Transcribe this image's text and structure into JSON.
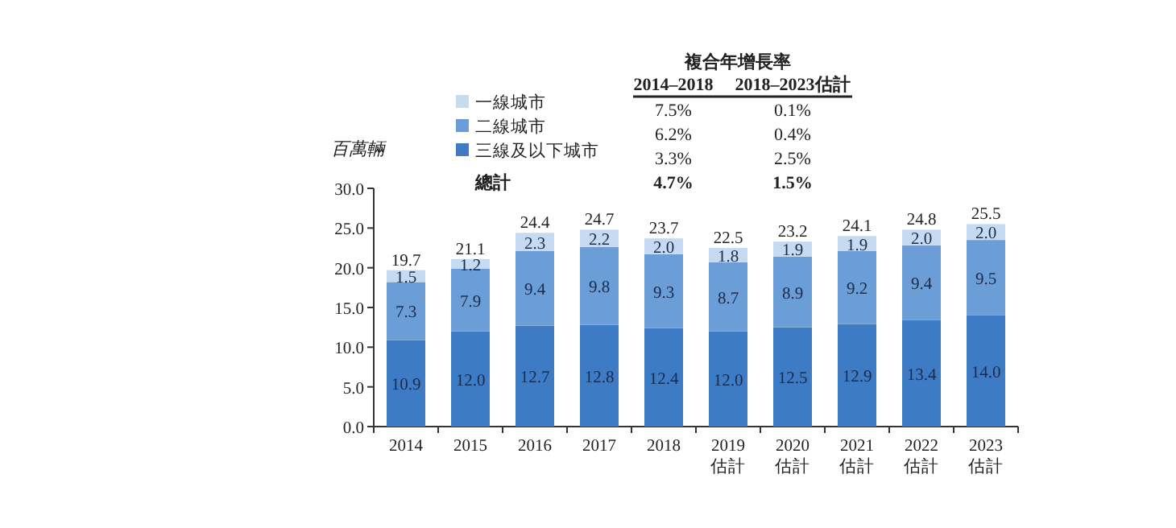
{
  "chart_data": {
    "type": "bar",
    "stacked": true,
    "ylabel": "百萬輛",
    "categories": [
      "2014",
      "2015",
      "2016",
      "2017",
      "2018",
      "2019 估計",
      "2020 估計",
      "2021 估計",
      "2022 估計",
      "2023 估計"
    ],
    "series": [
      {
        "name": "三線及以下城市",
        "color": "#3d7cc5",
        "values": [
          10.9,
          12.0,
          12.7,
          12.8,
          12.4,
          12.0,
          12.5,
          12.9,
          13.4,
          14.0
        ],
        "value_labels": [
          "10.9",
          "12.0",
          "12.7",
          "12.8",
          "12.4",
          "12.0",
          "12.5",
          "12.9",
          "13.4",
          "14.0"
        ]
      },
      {
        "name": "二線城市",
        "color": "#6b9dd6",
        "values": [
          7.3,
          7.9,
          9.4,
          9.8,
          9.3,
          8.7,
          8.9,
          9.2,
          9.4,
          9.5
        ],
        "value_labels": [
          "7.3",
          "7.9",
          "9.4",
          "9.8",
          "9.3",
          "8.7",
          "8.9",
          "9.2",
          "9.4",
          "9.5"
        ]
      },
      {
        "name": "一線城市",
        "color": "#c6dbf1",
        "values": [
          1.5,
          1.2,
          2.3,
          2.2,
          2.0,
          1.8,
          1.9,
          1.9,
          2.0,
          2.0
        ],
        "value_labels": [
          "1.5",
          "1.2",
          "2.3",
          "2.2",
          "2.0",
          "1.8",
          "1.9",
          "1.9",
          "2.0",
          "2.0"
        ]
      }
    ],
    "totals": [
      "19.7",
      "21.1",
      "24.4",
      "24.7",
      "23.7",
      "22.5",
      "23.2",
      "24.1",
      "24.8",
      "25.5"
    ],
    "ylim": [
      0,
      30
    ],
    "yticks": [
      {
        "value": 0,
        "label": "0.0"
      },
      {
        "value": 5,
        "label": "5.0"
      },
      {
        "value": 10,
        "label": "10.0"
      },
      {
        "value": 15,
        "label": "15.0"
      },
      {
        "value": 20,
        "label": "20.0"
      },
      {
        "value": 25,
        "label": "25.0"
      },
      {
        "value": 30,
        "label": "30.0"
      }
    ],
    "legend": "top left",
    "grid": false,
    "annotations": [
      "複合年增長率",
      "2014–2018",
      "2018–2023估計",
      "7.5%",
      "0.1%",
      "6.2%",
      "0.4%",
      "3.3%",
      "2.5%",
      "總計",
      "4.7%",
      "1.5%"
    ]
  }
}
